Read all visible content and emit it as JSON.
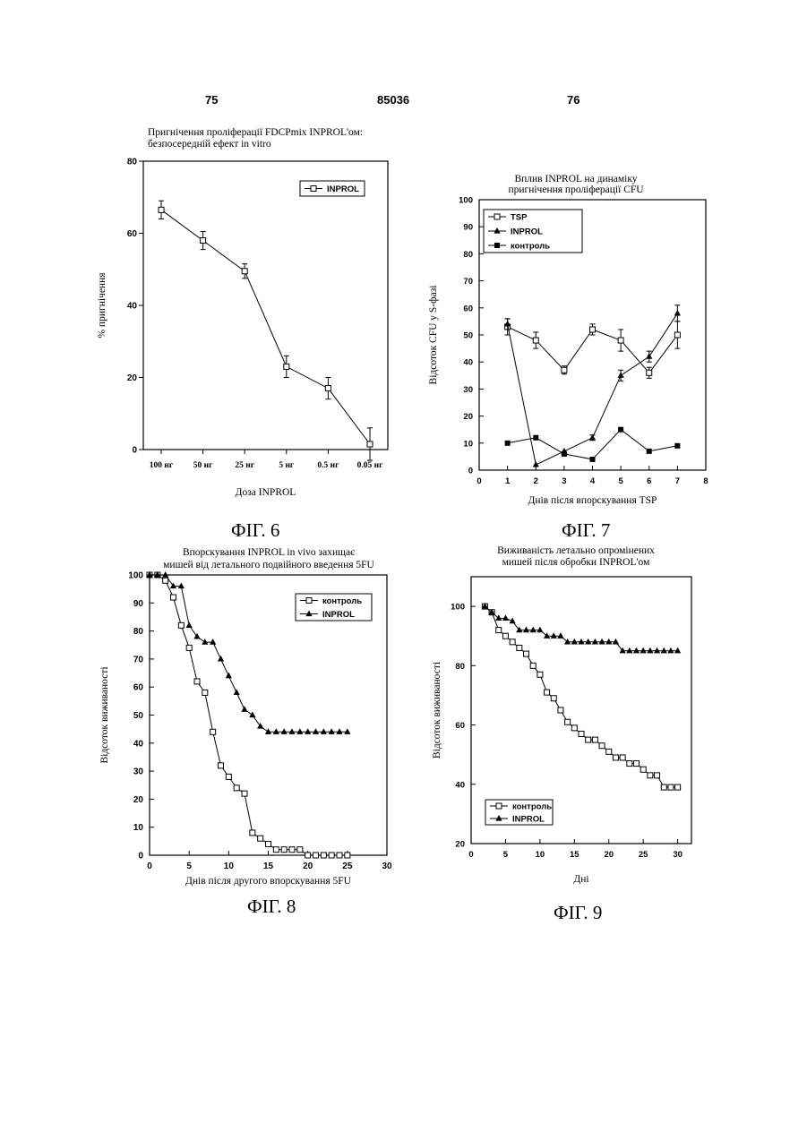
{
  "header": {
    "left_page": "75",
    "patent_number": "85036",
    "right_page": "76"
  },
  "captions": {
    "fig6": "ФІГ. 6",
    "fig7": "ФІГ. 7",
    "fig8": "ФІГ. 8",
    "fig9": "ФІГ. 9"
  },
  "chart_data": [
    {
      "id": "fig6",
      "type": "line",
      "title": [
        "Пригнічення проліферації FDCPmix INPROL'ом:",
        "безпосередній ефект in vitro"
      ],
      "xlabel": "Доза INPROL",
      "ylabel": "% пригнічення",
      "categories": [
        "100 нг",
        "50 нг",
        "25 нг",
        "5 нг",
        "0.5 нг",
        "0.05 нг"
      ],
      "ylim": [
        0,
        80
      ],
      "yticks": [
        0,
        20,
        40,
        60,
        80
      ],
      "legend_position": "top-right",
      "series": [
        {
          "name": "INPROL",
          "marker": "open-square",
          "values": [
            66.5,
            58,
            49.5,
            23,
            17,
            1.5
          ],
          "errors": [
            2.5,
            2.5,
            2,
            3,
            3,
            4.5
          ]
        }
      ]
    },
    {
      "id": "fig7",
      "type": "line",
      "title": [
        "Вплив INPROL на динаміку",
        "пригнічення проліферації CFU"
      ],
      "xlabel": "Днів після впорскування TSP",
      "ylabel": "Відсоток CFU у S-фазі",
      "xlim": [
        0,
        8
      ],
      "xticks": [
        0,
        1,
        2,
        3,
        4,
        5,
        6,
        7,
        8
      ],
      "ylim": [
        0,
        100
      ],
      "yticks": [
        0,
        10,
        20,
        30,
        40,
        50,
        60,
        70,
        80,
        90,
        100
      ],
      "legend_position": "top-left",
      "series": [
        {
          "name": "TSP",
          "marker": "open-square",
          "x": [
            1,
            2,
            3,
            4,
            5,
            6,
            7
          ],
          "values": [
            53,
            48,
            37,
            52,
            48,
            36,
            50
          ],
          "errors": [
            3,
            3,
            1.5,
            2,
            4,
            2,
            5
          ]
        },
        {
          "name": "INPROL",
          "marker": "filled-triangle",
          "x": [
            1,
            2,
            3,
            4,
            5,
            6,
            7
          ],
          "values": [
            54,
            2,
            7,
            12,
            35,
            42,
            58
          ],
          "errors": [
            2,
            0,
            0,
            1,
            2,
            2,
            3
          ]
        },
        {
          "name": "контроль",
          "marker": "filled-square",
          "x": [
            1,
            2,
            3,
            4,
            5,
            6,
            7
          ],
          "values": [
            10,
            12,
            6,
            4,
            15,
            7,
            9
          ]
        }
      ]
    },
    {
      "id": "fig8",
      "type": "line",
      "title": [
        "Впорскування INPROL in vivo захищає",
        "мишей від летального подвійного введення 5FU"
      ],
      "xlabel": "Днів після другого впорскування 5FU",
      "ylabel": "Відсоток виживаності",
      "xlim": [
        0,
        30
      ],
      "xticks": [
        0,
        5,
        10,
        15,
        20,
        25,
        30
      ],
      "ylim": [
        0,
        100
      ],
      "yticks": [
        0,
        10,
        20,
        30,
        40,
        50,
        60,
        70,
        80,
        90,
        100
      ],
      "legend_position": "top-right",
      "series": [
        {
          "name": "контроль",
          "marker": "open-square",
          "x": [
            0,
            1,
            2,
            3,
            4,
            5,
            6,
            7,
            8,
            9,
            10,
            11,
            12,
            13,
            14,
            15,
            16,
            17,
            18,
            19,
            20,
            21,
            22,
            23,
            24,
            25
          ],
          "values": [
            100,
            100,
            98,
            92,
            82,
            74,
            62,
            58,
            44,
            32,
            28,
            24,
            22,
            8,
            6,
            4,
            2,
            2,
            2,
            2,
            0,
            0,
            0,
            0,
            0,
            0
          ]
        },
        {
          "name": "INPROL",
          "marker": "filled-triangle",
          "x": [
            0,
            1,
            2,
            3,
            4,
            5,
            6,
            7,
            8,
            9,
            10,
            11,
            12,
            13,
            14,
            15,
            16,
            17,
            18,
            19,
            20,
            21,
            22,
            23,
            24,
            25
          ],
          "values": [
            100,
            100,
            100,
            96,
            96,
            82,
            78,
            76,
            76,
            70,
            64,
            58,
            52,
            50,
            46,
            44,
            44,
            44,
            44,
            44,
            44,
            44,
            44,
            44,
            44,
            44
          ]
        }
      ]
    },
    {
      "id": "fig9",
      "type": "line",
      "title": [
        "Виживаність летально опромінених",
        "мишей після обробки INPROL'ом"
      ],
      "xlabel": "Дні",
      "ylabel": "Відсоток виживаності",
      "xlim": [
        0,
        32
      ],
      "xticks": [
        0,
        5,
        10,
        15,
        20,
        25,
        30
      ],
      "ylim": [
        20,
        110
      ],
      "yticks": [
        20,
        40,
        60,
        80,
        100
      ],
      "legend_position": "bottom-left",
      "series": [
        {
          "name": "контроль",
          "marker": "open-square",
          "x": [
            2,
            3,
            4,
            5,
            6,
            7,
            8,
            9,
            10,
            11,
            12,
            13,
            14,
            15,
            16,
            17,
            18,
            19,
            20,
            21,
            22,
            23,
            24,
            25,
            26,
            27,
            28,
            29,
            30
          ],
          "values": [
            100,
            98,
            92,
            90,
            88,
            86,
            84,
            80,
            77,
            71,
            69,
            65,
            61,
            59,
            57,
            55,
            55,
            53,
            51,
            49,
            49,
            47,
            47,
            45,
            43,
            43,
            39,
            39,
            39
          ]
        },
        {
          "name": "INPROL",
          "marker": "filled-triangle",
          "x": [
            2,
            3,
            4,
            5,
            6,
            7,
            8,
            9,
            10,
            11,
            12,
            13,
            14,
            15,
            16,
            17,
            18,
            19,
            20,
            21,
            22,
            23,
            24,
            25,
            26,
            27,
            28,
            29,
            30
          ],
          "values": [
            100,
            98,
            96,
            96,
            95,
            92,
            92,
            92,
            92,
            90,
            90,
            90,
            88,
            88,
            88,
            88,
            88,
            88,
            88,
            88,
            85,
            85,
            85,
            85,
            85,
            85,
            85,
            85,
            85
          ]
        }
      ]
    }
  ]
}
